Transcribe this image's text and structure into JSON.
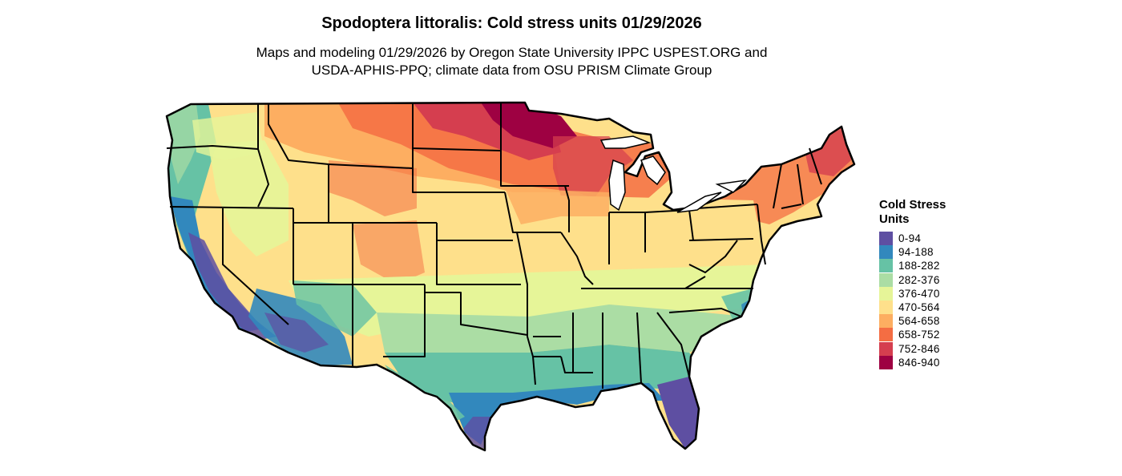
{
  "title": "Spodoptera littoralis: Cold stress units 01/29/2026",
  "subtitle_lines": [
    "Maps and modeling 01/29/2026 by Oregon State University IPPC USPEST.ORG and",
    "USDA-APHIS-PPQ; climate data from OSU PRISM Climate Group"
  ],
  "legend": {
    "title_lines": [
      "Cold Stress",
      "Units"
    ],
    "items": [
      {
        "label": "0-94",
        "color": "#5e4fa2"
      },
      {
        "label": "94-188",
        "color": "#3288bd"
      },
      {
        "label": "188-282",
        "color": "#66c2a5"
      },
      {
        "label": "282-376",
        "color": "#abdda4"
      },
      {
        "label": "376-470",
        "color": "#e6f598"
      },
      {
        "label": "470-564",
        "color": "#fee08b"
      },
      {
        "label": "564-658",
        "color": "#fdae61"
      },
      {
        "label": "658-752",
        "color": "#f46d43"
      },
      {
        "label": "752-846",
        "color": "#d53e4f"
      },
      {
        "label": "846-940",
        "color": "#9e0142"
      }
    ]
  }
}
